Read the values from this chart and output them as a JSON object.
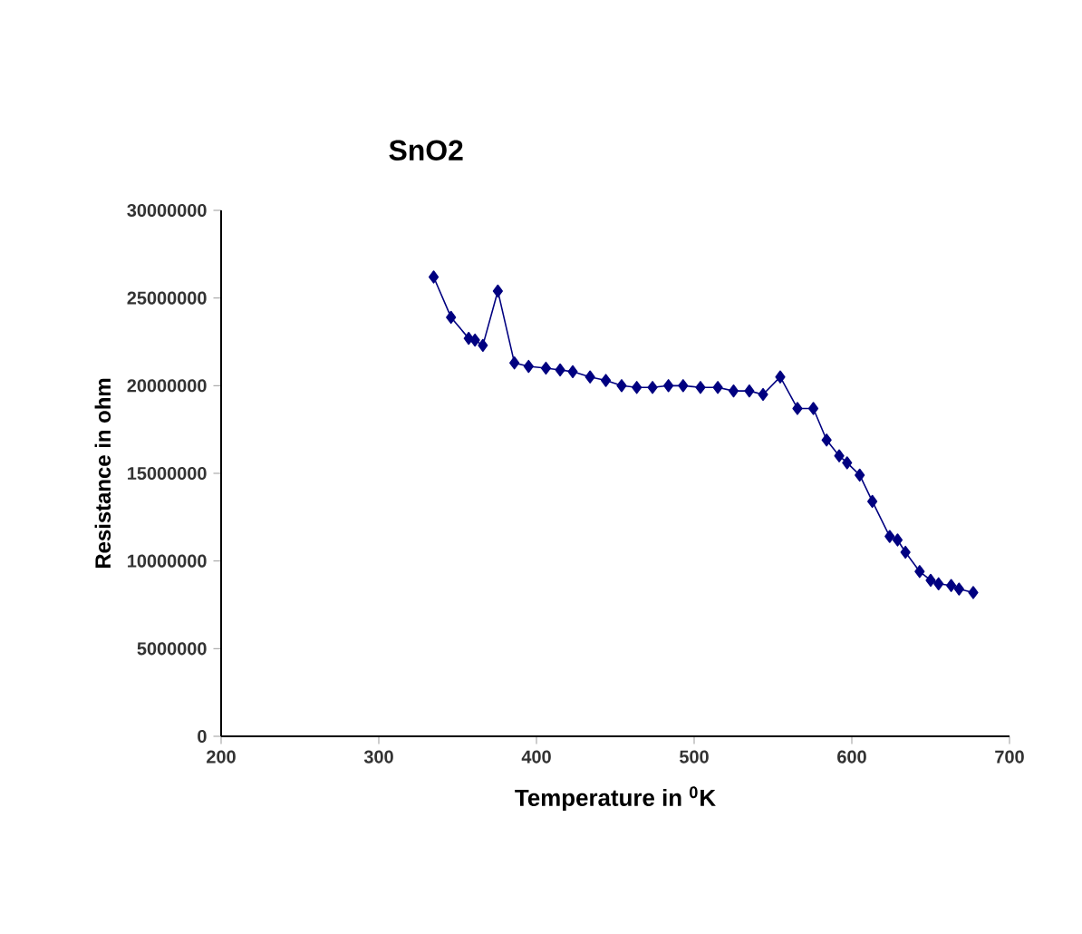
{
  "chart_data": {
    "type": "line",
    "title": "SnO2",
    "xlabel": "Temperature in $^{0}$K",
    "ylabel": "Resistance in ohm",
    "x": [
      334.8,
      345.8,
      357,
      361,
      366,
      375.5,
      386,
      395,
      406,
      415,
      423,
      434,
      444,
      454,
      463.6,
      473.6,
      483.7,
      493,
      504,
      515,
      525,
      535,
      543.7,
      554.6,
      565.5,
      575.6,
      584,
      592,
      597,
      605,
      613,
      624,
      629,
      634,
      643,
      650,
      655,
      663,
      668,
      677
    ],
    "series": [
      {
        "color": "#000080",
        "values": [
          26200000,
          23900000,
          22700000,
          22600000,
          22300000,
          25400000,
          21300000,
          21100000,
          21000000,
          20900000,
          20800000,
          20500000,
          20300000,
          20000000,
          19900000,
          19900000,
          20000000,
          20000000,
          19900000,
          19900000,
          19700000,
          19700000,
          19500000,
          20500000,
          18700000,
          18700000,
          16900000,
          16000000,
          15600000,
          14900000,
          13400000,
          11400000,
          11200000,
          10500000,
          9400000,
          8900000,
          8700000,
          8600000,
          8400000,
          8200000
        ]
      }
    ],
    "xlim": [
      200,
      700
    ],
    "xticks": [
      200,
      300,
      400,
      500,
      600,
      700
    ],
    "ylim": [
      0,
      30000000
    ],
    "yticks": [
      0,
      5000000,
      10000000,
      15000000,
      20000000,
      25000000,
      30000000
    ],
    "marker": "diamond",
    "line_style": "solid",
    "grid": false
  }
}
